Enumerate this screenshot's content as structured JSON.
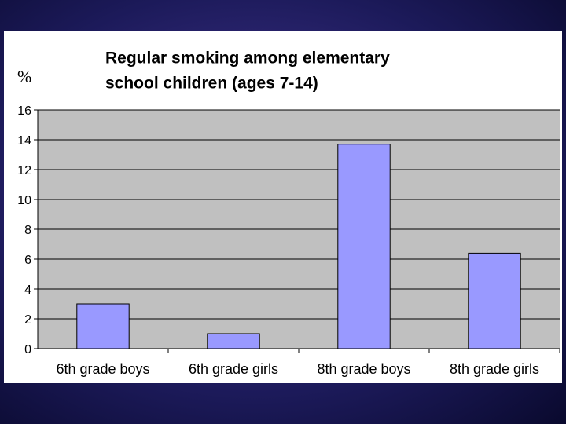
{
  "chart_data": {
    "type": "bar",
    "title": [
      "Regular smoking among elementary",
      "school children (ages 7-14)"
    ],
    "y_label": "%",
    "categories": [
      "6th grade boys",
      "6th grade girls",
      "8th grade boys",
      "8th grade girls"
    ],
    "values": [
      3,
      1,
      13.7,
      6.4
    ],
    "color": "#9999ff",
    "ylim": [
      0,
      16
    ],
    "yticks": [
      0,
      2,
      4,
      6,
      8,
      10,
      12,
      14,
      16
    ],
    "grid": true
  }
}
